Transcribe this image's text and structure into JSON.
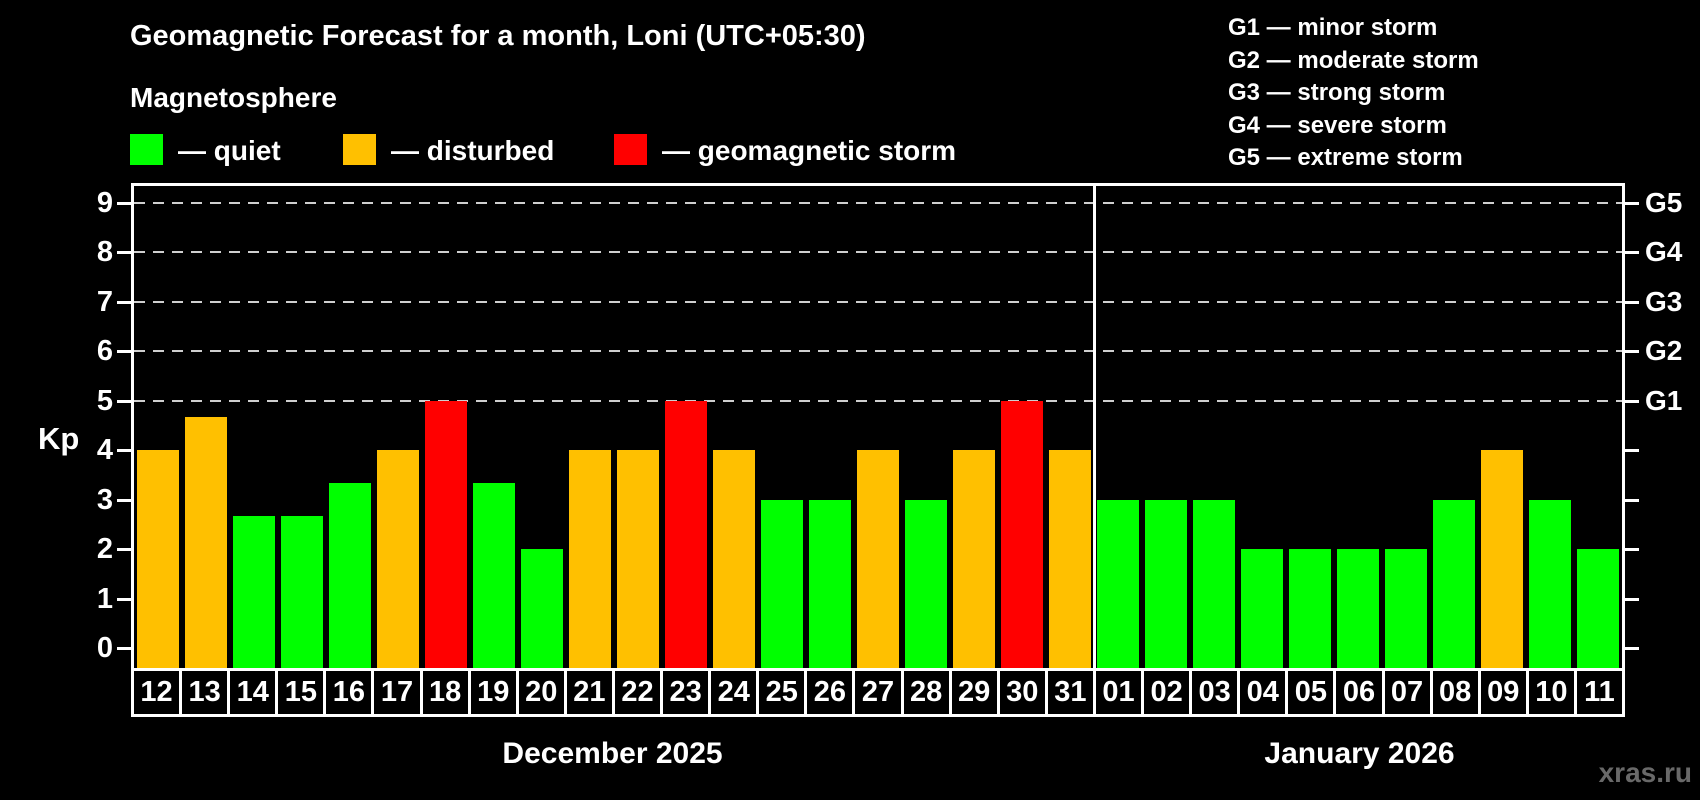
{
  "header": {
    "title": "Geomagnetic Forecast for a month, Loni (UTC+05:30)",
    "subtitle": "Magnetosphere"
  },
  "legend": {
    "items": [
      {
        "key": "quiet",
        "label": "— quiet",
        "color": "#00ff00"
      },
      {
        "key": "disturbed",
        "label": "— disturbed",
        "color": "#ffc000"
      },
      {
        "key": "storm",
        "label": "— geomagnetic storm",
        "color": "#ff0000"
      }
    ]
  },
  "g_scale_legend": {
    "items": [
      "G1 — minor storm",
      "G2 — moderate storm",
      "G3 — strong storm",
      "G4 — severe storm",
      "G5 — extreme storm"
    ]
  },
  "watermark": "xras.ru",
  "chart_data": {
    "type": "bar",
    "title": "Geomagnetic Forecast for a month, Loni (UTC+05:30)",
    "ylabel": "Kp",
    "ylim": [
      0,
      9.8
    ],
    "y_ticks": [
      0,
      1,
      2,
      3,
      4,
      5,
      6,
      7,
      8,
      9
    ],
    "gridlines_at_kp": [
      5,
      6,
      7,
      8,
      9
    ],
    "grid": "dashed",
    "legend_position": "top",
    "right_axis": {
      "ticks": [
        0,
        1,
        2,
        3,
        4,
        5,
        6,
        7,
        8,
        9
      ],
      "labels": [
        {
          "label": "G1",
          "kp": 5
        },
        {
          "label": "G2",
          "kp": 6
        },
        {
          "label": "G3",
          "kp": 7
        },
        {
          "label": "G4",
          "kp": 8
        },
        {
          "label": "G5",
          "kp": 9
        }
      ]
    },
    "status_colors": {
      "quiet": "#00ff00",
      "disturbed": "#ffc000",
      "storm": "#ff0000"
    },
    "months": [
      {
        "label": "December 2025",
        "days": [
          {
            "day": "12",
            "kp": 4,
            "status": "disturbed"
          },
          {
            "day": "13",
            "kp": 4.67,
            "status": "disturbed"
          },
          {
            "day": "14",
            "kp": 2.67,
            "status": "quiet"
          },
          {
            "day": "15",
            "kp": 2.67,
            "status": "quiet"
          },
          {
            "day": "16",
            "kp": 3.33,
            "status": "quiet"
          },
          {
            "day": "17",
            "kp": 4,
            "status": "disturbed"
          },
          {
            "day": "18",
            "kp": 5,
            "status": "storm"
          },
          {
            "day": "19",
            "kp": 3.33,
            "status": "quiet"
          },
          {
            "day": "20",
            "kp": 2,
            "status": "quiet"
          },
          {
            "day": "21",
            "kp": 4,
            "status": "disturbed"
          },
          {
            "day": "22",
            "kp": 4,
            "status": "disturbed"
          },
          {
            "day": "23",
            "kp": 5,
            "status": "storm"
          },
          {
            "day": "24",
            "kp": 4,
            "status": "disturbed"
          },
          {
            "day": "25",
            "kp": 3,
            "status": "quiet"
          },
          {
            "day": "26",
            "kp": 3,
            "status": "quiet"
          },
          {
            "day": "27",
            "kp": 4,
            "status": "disturbed"
          },
          {
            "day": "28",
            "kp": 3,
            "status": "quiet"
          },
          {
            "day": "29",
            "kp": 4,
            "status": "disturbed"
          },
          {
            "day": "30",
            "kp": 5,
            "status": "storm"
          },
          {
            "day": "31",
            "kp": 4,
            "status": "disturbed"
          }
        ]
      },
      {
        "label": "January 2026",
        "days": [
          {
            "day": "01",
            "kp": 3,
            "status": "quiet"
          },
          {
            "day": "02",
            "kp": 3,
            "status": "quiet"
          },
          {
            "day": "03",
            "kp": 3,
            "status": "quiet"
          },
          {
            "day": "04",
            "kp": 2,
            "status": "quiet"
          },
          {
            "day": "05",
            "kp": 2,
            "status": "quiet"
          },
          {
            "day": "06",
            "kp": 2,
            "status": "quiet"
          },
          {
            "day": "07",
            "kp": 2,
            "status": "quiet"
          },
          {
            "day": "08",
            "kp": 3,
            "status": "quiet"
          },
          {
            "day": "09",
            "kp": 4,
            "status": "disturbed"
          },
          {
            "day": "10",
            "kp": 3,
            "status": "quiet"
          },
          {
            "day": "11",
            "kp": 2,
            "status": "quiet"
          }
        ]
      }
    ]
  }
}
